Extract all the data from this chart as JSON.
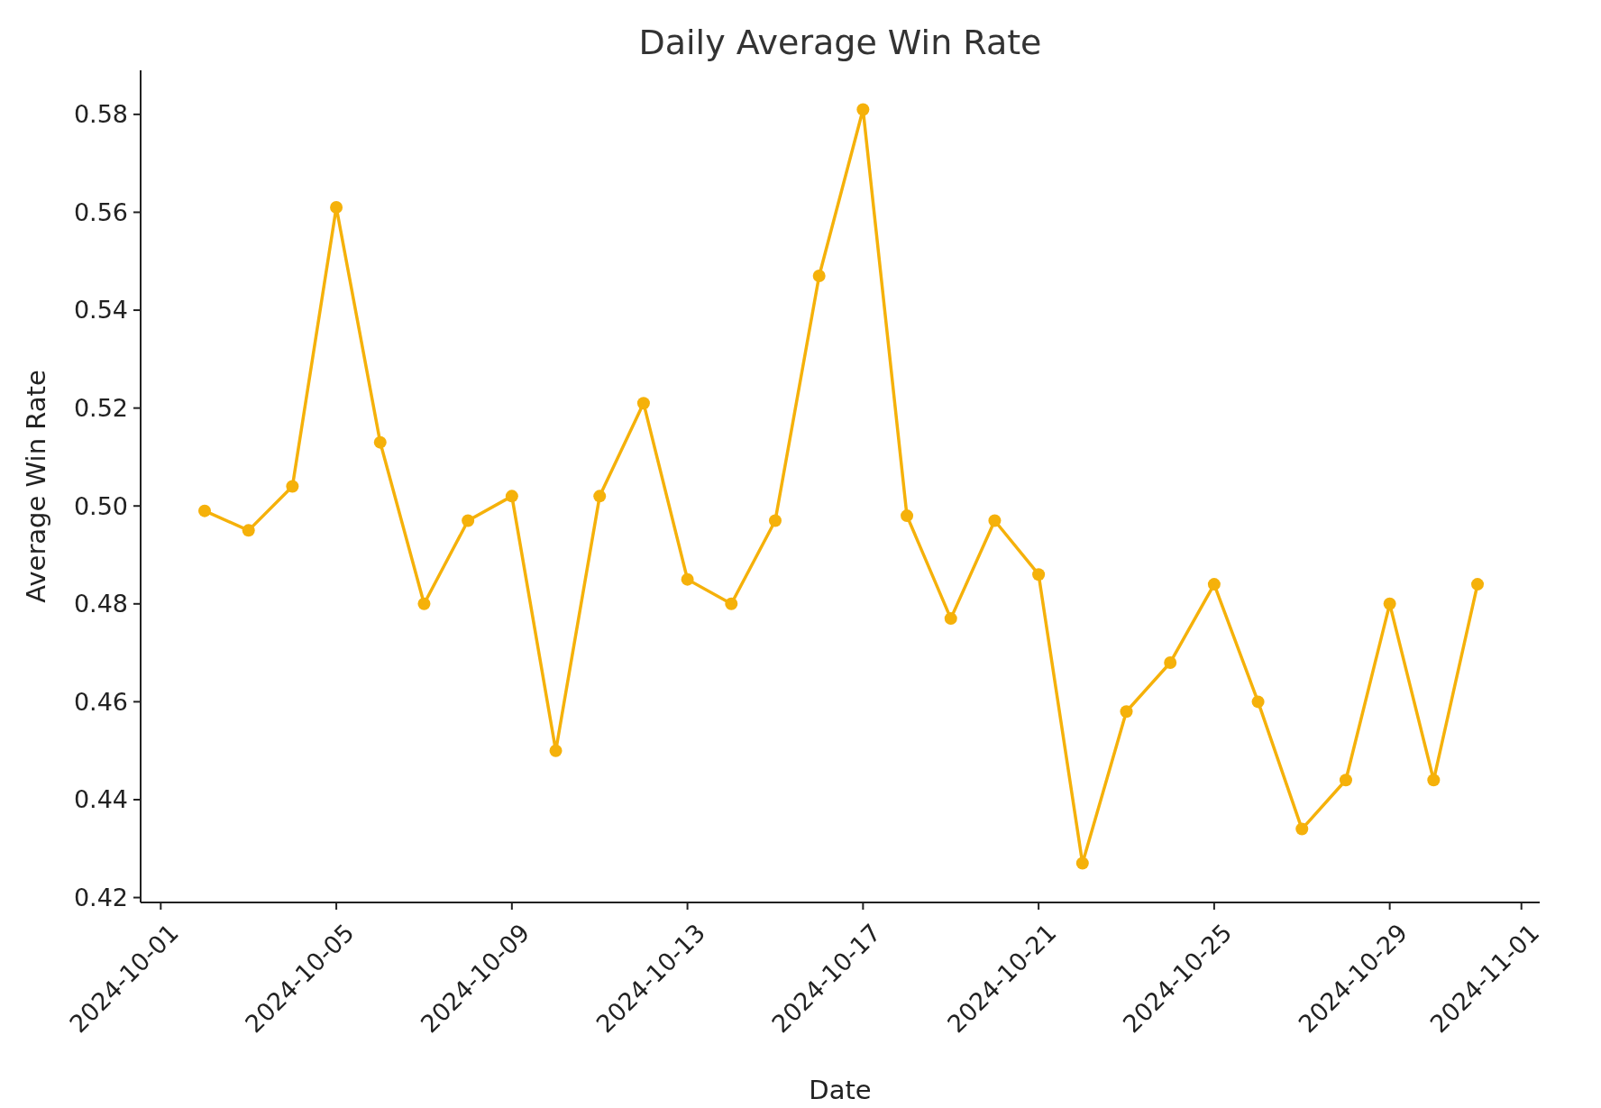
{
  "chart_data": {
    "type": "line",
    "title": "Daily Average Win Rate",
    "xlabel": "Date",
    "ylabel": "Average Win Rate",
    "x": [
      "2024-10-02",
      "2024-10-03",
      "2024-10-04",
      "2024-10-05",
      "2024-10-06",
      "2024-10-07",
      "2024-10-08",
      "2024-10-09",
      "2024-10-10",
      "2024-10-11",
      "2024-10-12",
      "2024-10-13",
      "2024-10-14",
      "2024-10-15",
      "2024-10-16",
      "2024-10-17",
      "2024-10-18",
      "2024-10-19",
      "2024-10-20",
      "2024-10-21",
      "2024-10-22",
      "2024-10-23",
      "2024-10-24",
      "2024-10-25",
      "2024-10-26",
      "2024-10-27",
      "2024-10-28",
      "2024-10-29",
      "2024-10-30",
      "2024-10-31"
    ],
    "series": [
      {
        "color": "#f5b10a",
        "values": [
          0.499,
          0.495,
          0.504,
          0.561,
          0.513,
          0.48,
          0.497,
          0.502,
          0.45,
          0.502,
          0.521,
          0.485,
          0.48,
          0.497,
          0.547,
          0.581,
          0.498,
          0.477,
          0.497,
          0.486,
          0.427,
          0.458,
          0.468,
          0.484,
          0.46,
          0.434,
          0.444,
          0.48,
          0.444,
          0.484
        ]
      }
    ],
    "xlim": [
      "2024-09-30T13:00",
      "2024-11-01T10:00"
    ],
    "xticks": [
      "2024-10-01",
      "2024-10-05",
      "2024-10-09",
      "2024-10-13",
      "2024-10-17",
      "2024-10-21",
      "2024-10-25",
      "2024-10-29",
      "2024-11-01"
    ],
    "ylim": [
      0.419,
      0.589
    ],
    "yticks": [
      {
        "value": 0.42,
        "label": "0.42"
      },
      {
        "value": 0.44,
        "label": "0.44"
      },
      {
        "value": 0.46,
        "label": "0.46"
      },
      {
        "value": 0.48,
        "label": "0.48"
      },
      {
        "value": 0.5,
        "label": "0.50"
      },
      {
        "value": 0.52,
        "label": "0.52"
      },
      {
        "value": 0.54,
        "label": "0.54"
      },
      {
        "value": 0.56,
        "label": "0.56"
      },
      {
        "value": 0.58,
        "label": "0.58"
      }
    ],
    "grid": false,
    "marker": "circle",
    "line_style": "solid"
  }
}
